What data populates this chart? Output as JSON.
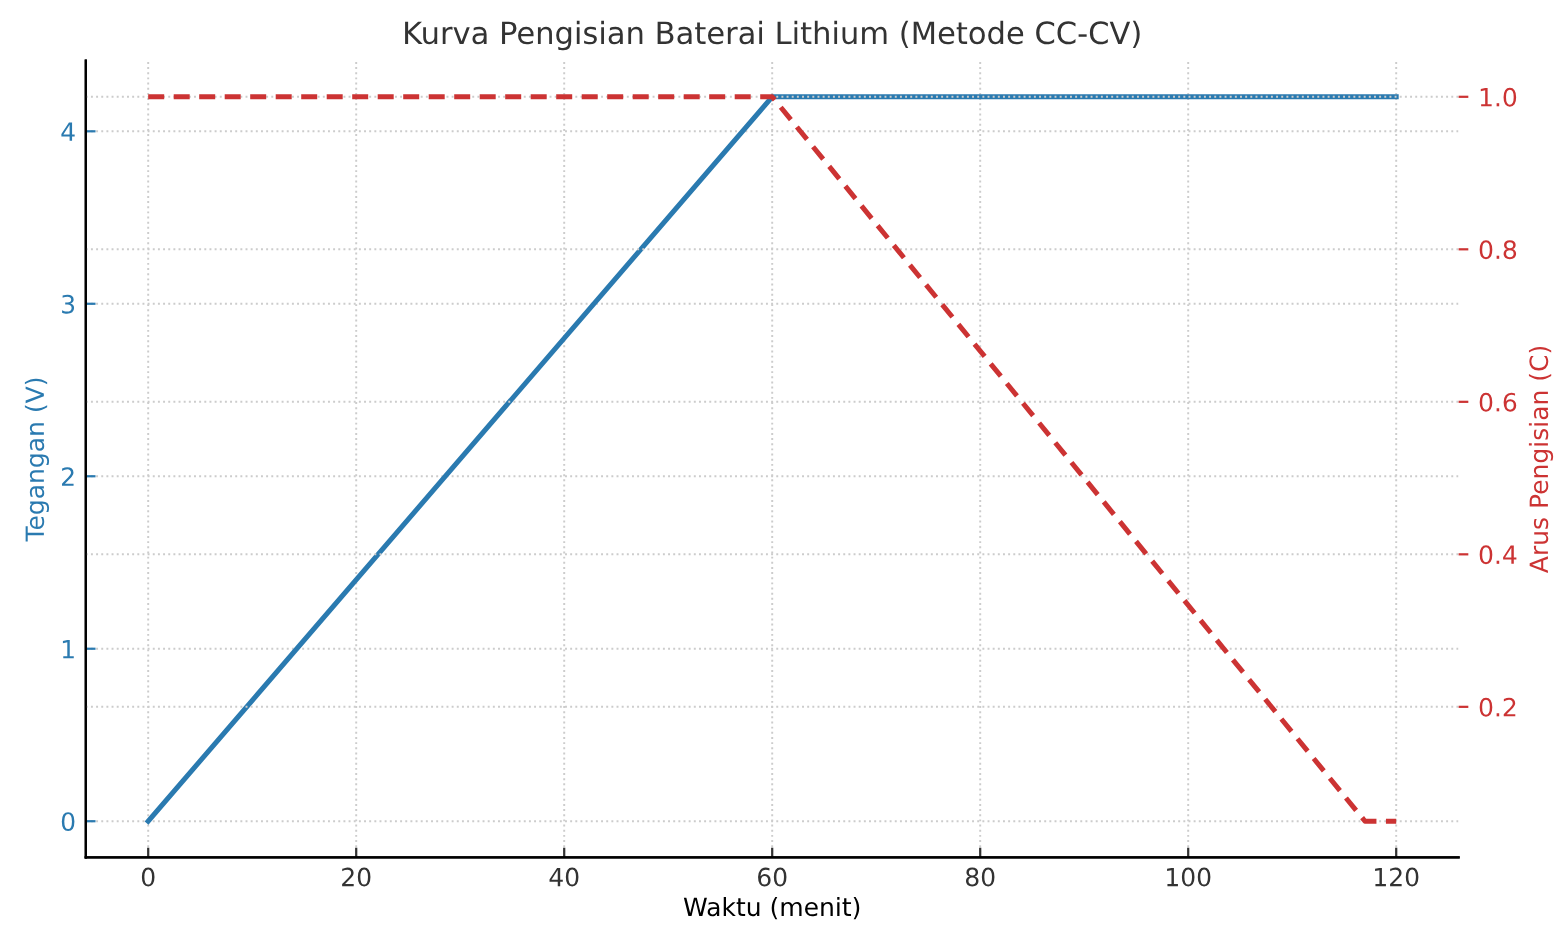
{
  "chart_data": {
    "type": "line",
    "title": "Kurva Pengisian Baterai Lithium (Metode CC-CV)",
    "xlabel": "Waktu (menit)",
    "ylabel": "Tegangan (V)",
    "y2label": "Arus Pengisian (C)",
    "series": [
      {
        "name": null,
        "color": "#2a7ab0",
        "line_style": "solid",
        "x": [
          0,
          60,
          120
        ],
        "values": [
          0,
          4.2,
          4.2
        ]
      },
      {
        "name": null,
        "color": "#cc3333",
        "line_style": "dashed",
        "axis": "y2",
        "x": [
          0,
          60,
          117,
          120
        ],
        "values": [
          1.0,
          1.0,
          0.05,
          0.05
        ]
      }
    ],
    "xlim": [
      -6,
      126
    ],
    "xticks": [
      0,
      20,
      40,
      60,
      80,
      100,
      120
    ],
    "ylim": [
      -0.21,
      4.41
    ],
    "yticks": [
      0,
      1,
      2,
      3,
      4
    ],
    "y2lim": [
      0.0025,
      1.0475
    ],
    "y2ticks": [
      {
        "value": 0.2,
        "label": "0.2"
      },
      {
        "value": 0.4,
        "label": "0.4"
      },
      {
        "value": 0.6,
        "label": "0.6"
      },
      {
        "value": 0.8,
        "label": "0.8"
      },
      {
        "value": 1.0,
        "label": "1.0"
      }
    ],
    "grid": true,
    "legend": false
  }
}
